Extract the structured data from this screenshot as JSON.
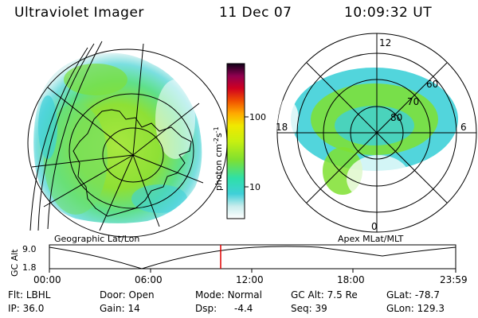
{
  "header": {
    "instrument": "Ultraviolet Imager",
    "date": "11 Dec 07",
    "time": "10:09:32 UT"
  },
  "colorbar": {
    "label": "photon cm",
    "label_sup1": "-2",
    "label_s": "s",
    "label_sup2": "-1",
    "ticks": [
      "100",
      "10"
    ]
  },
  "left_map": {
    "caption": "Geographic Lat/Lon"
  },
  "right_map": {
    "caption": "Apex MLat/MLT",
    "mlt_labels": {
      "top": "12",
      "left": "18",
      "right": "6",
      "bottom": "0"
    },
    "lat_labels": [
      "60",
      "70",
      "80"
    ]
  },
  "altitude_plot": {
    "ylabel": "GC Alt",
    "yticks": [
      "9.0",
      "1.8"
    ],
    "xticks": [
      "00:00",
      "06:00",
      "12:00",
      "18:00",
      "23:59"
    ],
    "current_time_marker": "10:09"
  },
  "footer": {
    "filter_label": "Flt:",
    "filter_value": "LBHL",
    "ip_label": "IP:",
    "ip_value": "36.0",
    "door_label": "Door:",
    "door_value": "Open",
    "gain_label": "Gain:",
    "gain_value": "14",
    "mode_label": "Mode:",
    "mode_value": "Normal",
    "dsp_label": "Dsp:",
    "dsp_value": "-4.4",
    "gcalt_label": "GC Alt:",
    "gcalt_value": "7.5 Re",
    "seq_label": "Seq:",
    "seq_value": "39",
    "glat_label": "GLat:",
    "glat_value": "-78.7",
    "glon_label": "GLon:",
    "glon_value": "129.3"
  }
}
